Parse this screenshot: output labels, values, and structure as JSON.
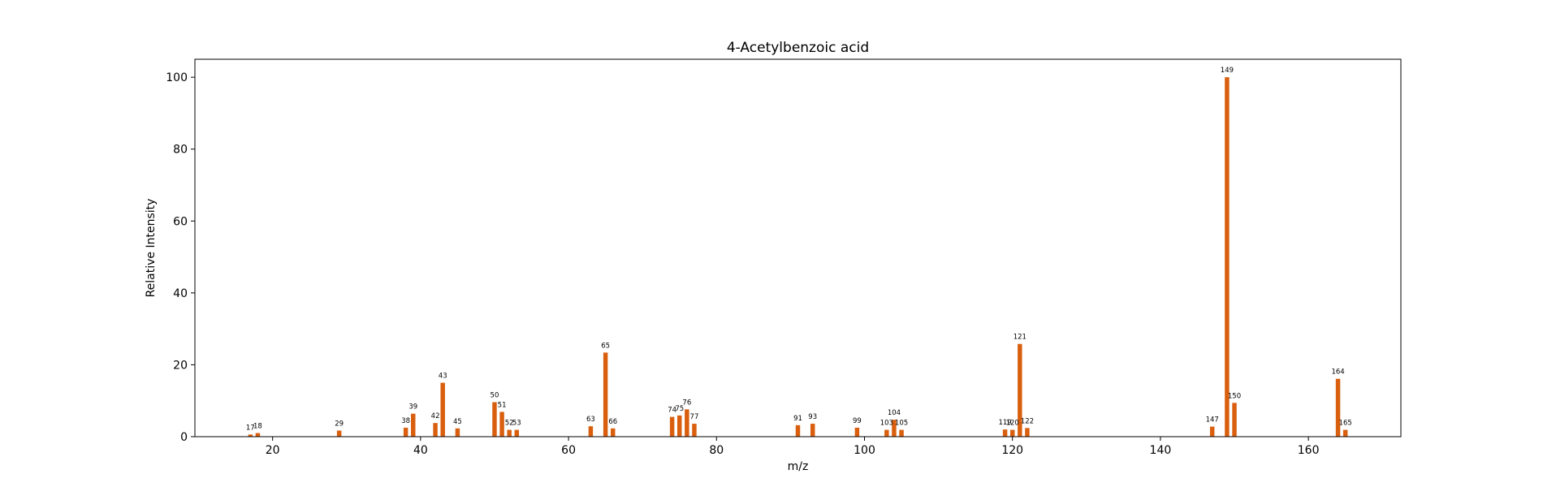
{
  "chart_data": {
    "type": "bar",
    "title": "4-Acetylbenzoic acid",
    "xlabel": "m/z",
    "ylabel": "Relative Intensity",
    "xlim": [
      9.5,
      172.5
    ],
    "ylim": [
      0,
      105
    ],
    "xticks": [
      20,
      40,
      60,
      80,
      100,
      120,
      140,
      160
    ],
    "yticks": [
      0,
      20,
      40,
      60,
      80,
      100
    ],
    "grid": false,
    "bar_color": "#d95f0e",
    "peaks": [
      {
        "mz": 17,
        "intensity": 0.6,
        "label": "17"
      },
      {
        "mz": 18,
        "intensity": 1.0,
        "label": "18"
      },
      {
        "mz": 29,
        "intensity": 1.7,
        "label": "29"
      },
      {
        "mz": 38,
        "intensity": 2.5,
        "label": "38"
      },
      {
        "mz": 39,
        "intensity": 6.4,
        "label": "39"
      },
      {
        "mz": 42,
        "intensity": 3.8,
        "label": "42"
      },
      {
        "mz": 43,
        "intensity": 15.0,
        "label": "43"
      },
      {
        "mz": 45,
        "intensity": 2.3,
        "label": "45"
      },
      {
        "mz": 50,
        "intensity": 9.6,
        "label": "50"
      },
      {
        "mz": 51,
        "intensity": 6.9,
        "label": "51"
      },
      {
        "mz": 52,
        "intensity": 1.9,
        "label": "52"
      },
      {
        "mz": 53,
        "intensity": 1.9,
        "label": "53"
      },
      {
        "mz": 63,
        "intensity": 2.9,
        "label": "63"
      },
      {
        "mz": 65,
        "intensity": 23.4,
        "label": "65"
      },
      {
        "mz": 66,
        "intensity": 2.3,
        "label": "66"
      },
      {
        "mz": 74,
        "intensity": 5.5,
        "label": "74"
      },
      {
        "mz": 75,
        "intensity": 5.9,
        "label": "75"
      },
      {
        "mz": 76,
        "intensity": 7.6,
        "label": "76"
      },
      {
        "mz": 77,
        "intensity": 3.6,
        "label": "77"
      },
      {
        "mz": 91,
        "intensity": 3.2,
        "label": "91"
      },
      {
        "mz": 93,
        "intensity": 3.6,
        "label": "93"
      },
      {
        "mz": 99,
        "intensity": 2.5,
        "label": "99"
      },
      {
        "mz": 103,
        "intensity": 1.9,
        "label": "103"
      },
      {
        "mz": 104,
        "intensity": 4.7,
        "label": "104"
      },
      {
        "mz": 105,
        "intensity": 1.9,
        "label": "105"
      },
      {
        "mz": 119,
        "intensity": 2.0,
        "label": "119"
      },
      {
        "mz": 120,
        "intensity": 1.9,
        "label": "120"
      },
      {
        "mz": 121,
        "intensity": 25.8,
        "label": "121"
      },
      {
        "mz": 122,
        "intensity": 2.4,
        "label": "122"
      },
      {
        "mz": 147,
        "intensity": 2.8,
        "label": "147"
      },
      {
        "mz": 149,
        "intensity": 100.0,
        "label": "149"
      },
      {
        "mz": 150,
        "intensity": 9.4,
        "label": "150"
      },
      {
        "mz": 164,
        "intensity": 16.1,
        "label": "164"
      },
      {
        "mz": 165,
        "intensity": 1.9,
        "label": "165"
      }
    ]
  }
}
